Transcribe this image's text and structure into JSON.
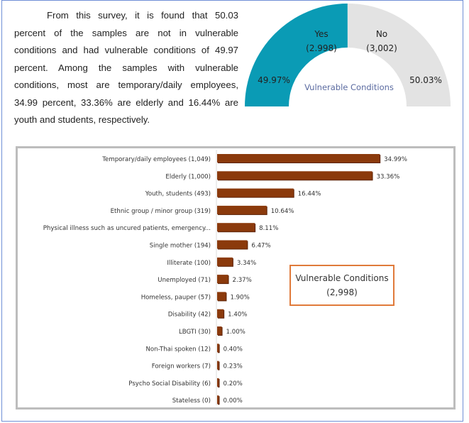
{
  "paragraph": "From this survey, it is found that 50.03 percent of the samples are not in vulnerable conditions and had vulnerable conditions of 49.97 percent. Among the samples with vulnerable conditions, most are temporary/daily employees, 34.99 percent, 33.36% are elderly and 16.44% are youth and students, respectively.",
  "chart_data": [
    {
      "type": "pie",
      "subtype": "half-donut",
      "center_label": "Vulnerable Conditions",
      "slices": [
        {
          "label": "Yes",
          "count_label": "(2.998)",
          "value": 49.97,
          "pct_label": "49.97%",
          "color": "#0a9bb5"
        },
        {
          "label": "No",
          "count_label": "(3,002)",
          "value": 50.03,
          "pct_label": "50.03%",
          "color": "#e3e3e3"
        }
      ]
    },
    {
      "type": "bar",
      "orientation": "horizontal",
      "bar_color": "#8b3a0c",
      "legend_box": {
        "title": "Vulnerable Conditions",
        "count": "(2,998)"
      },
      "categories": [
        "Temporary/daily employees (1,049)",
        "Elderly (1,000)",
        "Youth, students (493)",
        "Ethnic group / minor group (319)",
        "Physical illness such as uncured patients, emergency...",
        "Single mother (194)",
        "Illiterate (100)",
        "Unemployed (71)",
        "Homeless, pauper (57)",
        "Disability (42)",
        "LBGTI (30)",
        "Non-Thai spoken (12)",
        "Foreign workers (7)",
        "Psycho Social Disability (6)",
        "Stateless (0)"
      ],
      "values": [
        34.99,
        33.36,
        16.44,
        10.64,
        8.11,
        6.47,
        3.34,
        2.37,
        1.9,
        1.4,
        1.0,
        0.4,
        0.23,
        0.2,
        0.0
      ],
      "value_labels": [
        "34.99%",
        "33.36%",
        "16.44%",
        "10.64%",
        "8.11%",
        "6.47%",
        "3.34%",
        "2.37%",
        "1.90%",
        "1.40%",
        "1.00%",
        "0.40%",
        "0.23%",
        "0.20%",
        "0.00%"
      ]
    }
  ]
}
